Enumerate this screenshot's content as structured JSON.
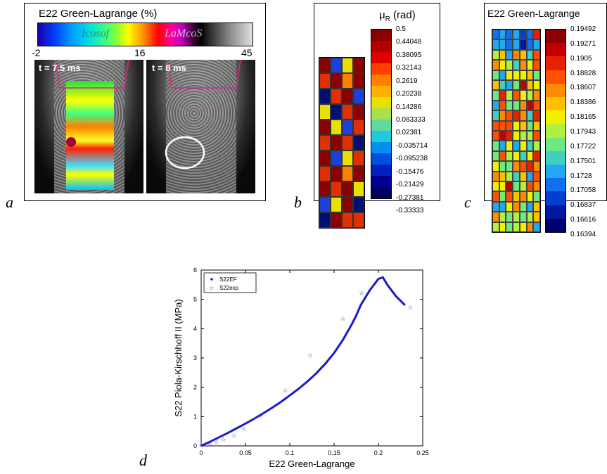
{
  "figure_labels": {
    "a": "a",
    "b": "b",
    "c": "c",
    "d": "d"
  },
  "panel_a": {
    "title": "E22 Green-Lagrange (%)",
    "colorbar_ticks": [
      "-2",
      "16",
      "45"
    ],
    "watermark_left": "Icosof",
    "watermark_right": "LaMcoS",
    "time_left": "t = 7.5 ms",
    "time_right": "t = 8 ms"
  },
  "panel_b": {
    "title": "μ",
    "title_sub": "R",
    "title_unit": " (rad)",
    "colorbar_labels": [
      "0.5",
      "0.44048",
      "0.38095",
      "0.32143",
      "0.2619",
      "0.20238",
      "0.14286",
      "0.083333",
      "0.02381",
      "-0.035714",
      "-0.095238",
      "-0.15476",
      "-0.21429",
      "-0.27381",
      "-0.33333"
    ],
    "grid_colors": [
      "#8B0000",
      "#1E3FD8",
      "#E8E000",
      "#8B0000",
      "#E03000",
      "#8B0000",
      "#FF8000",
      "#8B0000",
      "#001070",
      "#E03000",
      "#8B0000",
      "#1E3FD8",
      "#E8E000",
      "#001070",
      "#E03000",
      "#8B0000",
      "#8B0000",
      "#E8E000",
      "#1E3FD8",
      "#E03000",
      "#E03000",
      "#8B0000",
      "#E03000",
      "#001070",
      "#8B0000",
      "#1E3FD8",
      "#E8E000",
      "#E03000",
      "#E03000",
      "#8B0000",
      "#FF8000",
      "#8B0000",
      "#8B0000",
      "#E03000",
      "#8B0000",
      "#E8E000",
      "#1E3FD8",
      "#E8E000",
      "#8B0000",
      "#001070",
      "#001070",
      "#8B0000",
      "#E03000",
      "#E03000"
    ],
    "colorbar_colors": [
      "#8B0000",
      "#B00000",
      "#E00000",
      "#FF4000",
      "#FF8000",
      "#FFB000",
      "#E8E000",
      "#A8E050",
      "#60D8A0",
      "#20C8E0",
      "#0090F0",
      "#0050E0",
      "#0020C0",
      "#000090",
      "#000060"
    ]
  },
  "panel_c": {
    "title": "E22 Green-Lagrange",
    "colorbar_labels": [
      "0.19492",
      "0.19271",
      "0.1905",
      "0.18828",
      "0.18607",
      "0.18386",
      "0.18165",
      "0.17943",
      "0.17722",
      "0.17501",
      "0.1728",
      "0.17058",
      "0.16837",
      "0.16616",
      "0.16394"
    ],
    "colorbar_colors": [
      "#8B0000",
      "#C00000",
      "#E82000",
      "#FF5000",
      "#FF8C00",
      "#FFC000",
      "#F0F000",
      "#B0F040",
      "#70E880",
      "#40D0C0",
      "#20A8F0",
      "#1070F0",
      "#0040D0",
      "#0018A0",
      "#000070"
    ]
  },
  "chart_data": {
    "type": "line",
    "xlabel": "E22 Green-Lagrange",
    "ylabel": "S22 Piola-Kirschhoff II (MPa)",
    "xlim": [
      0,
      0.25
    ],
    "ylim": [
      0,
      6
    ],
    "x_ticks": [
      "0",
      "0.05",
      "0.1",
      "0.15",
      "0.2",
      "0.25"
    ],
    "y_ticks": [
      "0",
      "1",
      "2",
      "3",
      "4",
      "5",
      "6"
    ],
    "legend_position": "top-left",
    "series": [
      {
        "name": "S22EF",
        "style": "line",
        "color": "#1a1acc",
        "x": [
          0,
          0.01,
          0.02,
          0.03,
          0.04,
          0.05,
          0.06,
          0.07,
          0.08,
          0.09,
          0.1,
          0.11,
          0.12,
          0.13,
          0.14,
          0.15,
          0.16,
          0.17,
          0.175,
          0.18,
          0.19,
          0.2,
          0.205,
          0.21,
          0.22,
          0.23
        ],
        "y": [
          0,
          0.14,
          0.29,
          0.44,
          0.6,
          0.76,
          0.93,
          1.11,
          1.3,
          1.5,
          1.72,
          1.95,
          2.2,
          2.48,
          2.8,
          3.17,
          3.62,
          4.15,
          4.45,
          4.8,
          5.3,
          5.7,
          5.75,
          5.5,
          5.1,
          4.8
        ]
      },
      {
        "name": "S22exp",
        "style": "star",
        "color": "#1a1acc",
        "x": [
          0,
          0.01,
          0.017,
          0.025,
          0.037,
          0.048,
          0.067,
          0.095,
          0.123,
          0.16,
          0.181,
          0.236
        ],
        "y": [
          0.02,
          0.06,
          0.12,
          0.22,
          0.35,
          0.58,
          1.03,
          1.9,
          3.08,
          4.35,
          5.22,
          4.72
        ]
      }
    ]
  }
}
